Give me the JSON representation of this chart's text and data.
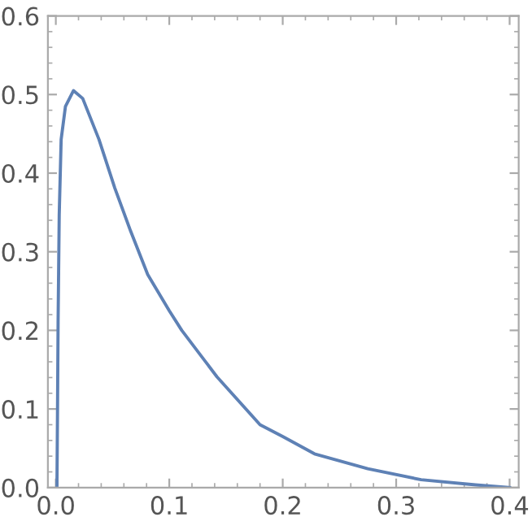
{
  "chart_data": {
    "type": "line",
    "xlim": [
      -0.007,
      0.408
    ],
    "ylim": [
      0,
      0.6
    ],
    "xticks": [
      {
        "value": 0,
        "label": "0.0"
      },
      0.1,
      0.2,
      0.3,
      0.4
    ],
    "yticks": [
      {
        "value": 0,
        "label": "0.0"
      },
      0.1,
      0.2,
      0.3,
      0.4,
      0.5,
      0.6
    ],
    "series": [
      {
        "color": "#5e81b5",
        "x": [
          0.001,
          0.0015,
          0.002,
          0.003,
          0.0047,
          0.0085,
          0.0156,
          0.0237,
          0.038,
          0.052,
          0.066,
          0.081,
          0.1,
          0.111,
          0.142,
          0.18,
          0.2,
          0.228,
          0.275,
          0.322,
          0.37,
          0.4
        ],
        "values": [
          0,
          0.1,
          0.21,
          0.347,
          0.443,
          0.485,
          0.505,
          0.495,
          0.443,
          0.381,
          0.326,
          0.271,
          0.225,
          0.2,
          0.141,
          0.08,
          0.065,
          0.043,
          0.024,
          0.01,
          0.0035,
          0
        ]
      }
    ]
  }
}
